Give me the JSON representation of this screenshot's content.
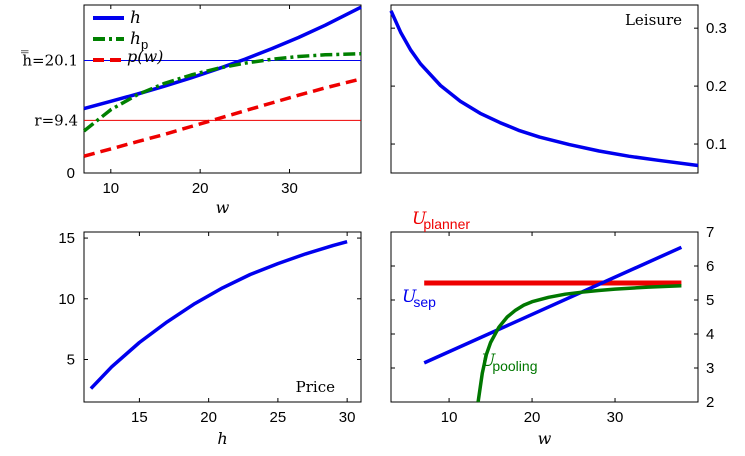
{
  "chart_data": [
    {
      "id": "top-left",
      "type": "line",
      "xlabel": "w",
      "xlim": [
        7,
        38
      ],
      "ylim": [
        0,
        30
      ],
      "xticks": [
        "10",
        "20",
        "30"
      ],
      "yticks": [
        {
          "value": 0,
          "label": "0"
        }
      ],
      "annotations": [
        {
          "y": 20.1,
          "label": "h̿=20.1"
        },
        {
          "y": 9.4,
          "label": "r=9.4"
        }
      ],
      "legend": [
        "h",
        "h_p",
        "p(w)"
      ],
      "legend_position": "top-left",
      "series": [
        {
          "name": "h",
          "color": "#0000ee",
          "style": "solid",
          "x": [
            7,
            10,
            13,
            16,
            19,
            22,
            25,
            28,
            31,
            34,
            38
          ],
          "y": [
            11.5,
            12.8,
            14.1,
            15.5,
            17.0,
            18.6,
            20.3,
            22.2,
            24.2,
            26.4,
            29.6
          ]
        },
        {
          "name": "h_p",
          "color": "#008000",
          "style": "dashdot",
          "x": [
            7,
            10,
            13,
            16,
            19,
            22,
            25,
            28,
            31,
            34,
            38
          ],
          "y": [
            7.5,
            11.3,
            14.0,
            16.0,
            17.5,
            18.7,
            19.6,
            20.3,
            20.8,
            21.1,
            21.3
          ]
        },
        {
          "name": "p(w)",
          "color": "#ee0000",
          "style": "dashed",
          "x": [
            7,
            10,
            13,
            16,
            19,
            22,
            25,
            28,
            31,
            34,
            38
          ],
          "y": [
            3.0,
            4.3,
            5.6,
            6.9,
            8.3,
            9.7,
            11.1,
            12.5,
            13.9,
            15.2,
            16.8
          ]
        }
      ]
    },
    {
      "id": "top-right",
      "type": "line",
      "title": "Leisure",
      "xlim": [
        7,
        38
      ],
      "ylim": [
        0.05,
        0.34
      ],
      "yticks": [
        "0.1",
        "0.2",
        "0.3"
      ],
      "yaxis_side": "right",
      "series": [
        {
          "color": "#0000ee",
          "x": [
            7,
            8,
            9,
            10,
            12,
            14,
            16,
            18,
            20,
            22,
            25,
            28,
            31,
            34,
            38
          ],
          "y": [
            0.33,
            0.292,
            0.262,
            0.238,
            0.201,
            0.174,
            0.153,
            0.137,
            0.123,
            0.112,
            0.099,
            0.088,
            0.079,
            0.072,
            0.063
          ]
        }
      ]
    },
    {
      "id": "bottom-left",
      "type": "line",
      "title": "Price",
      "xlabel": "h",
      "xlim": [
        11,
        31
      ],
      "ylim": [
        1.5,
        15.5
      ],
      "xticks": [
        "15",
        "20",
        "25",
        "30"
      ],
      "yticks": [
        "5",
        "10",
        "15"
      ],
      "series": [
        {
          "color": "#0000ee",
          "x": [
            11.5,
            13,
            15,
            17,
            19,
            21,
            23,
            25,
            27,
            29,
            30
          ],
          "y": [
            2.6,
            4.4,
            6.4,
            8.1,
            9.6,
            10.9,
            12.0,
            12.9,
            13.7,
            14.4,
            14.7
          ]
        }
      ]
    },
    {
      "id": "bottom-right",
      "type": "line",
      "xlabel": "w",
      "xlim": [
        3,
        40
      ],
      "ylim": [
        2,
        7
      ],
      "xticks": [
        "10",
        "20",
        "30"
      ],
      "yticks": [
        "2",
        "3",
        "4",
        "5",
        "6",
        "7"
      ],
      "yaxis_side": "right",
      "labels": {
        "planner": {
          "base": "U",
          "sub": "planner"
        },
        "sep": {
          "base": "U",
          "sub": "sep"
        },
        "pooling": {
          "base": "U",
          "sub": "pooling"
        }
      },
      "series": [
        {
          "name": "U_planner",
          "color": "#ee0000",
          "x": [
            7,
            38
          ],
          "y": [
            5.5,
            5.5
          ]
        },
        {
          "name": "U_sep",
          "color": "#0000ee",
          "x": [
            7,
            38
          ],
          "y": [
            3.15,
            6.55
          ]
        },
        {
          "name": "U_pooling",
          "color": "#007700",
          "x": [
            13.5,
            14,
            14.5,
            15,
            16,
            17,
            18,
            19,
            20,
            22,
            24,
            26,
            28,
            30,
            34,
            38
          ],
          "y": [
            2.0,
            2.85,
            3.4,
            3.75,
            4.2,
            4.5,
            4.7,
            4.85,
            4.95,
            5.08,
            5.17,
            5.23,
            5.28,
            5.32,
            5.38,
            5.42
          ]
        }
      ]
    }
  ]
}
